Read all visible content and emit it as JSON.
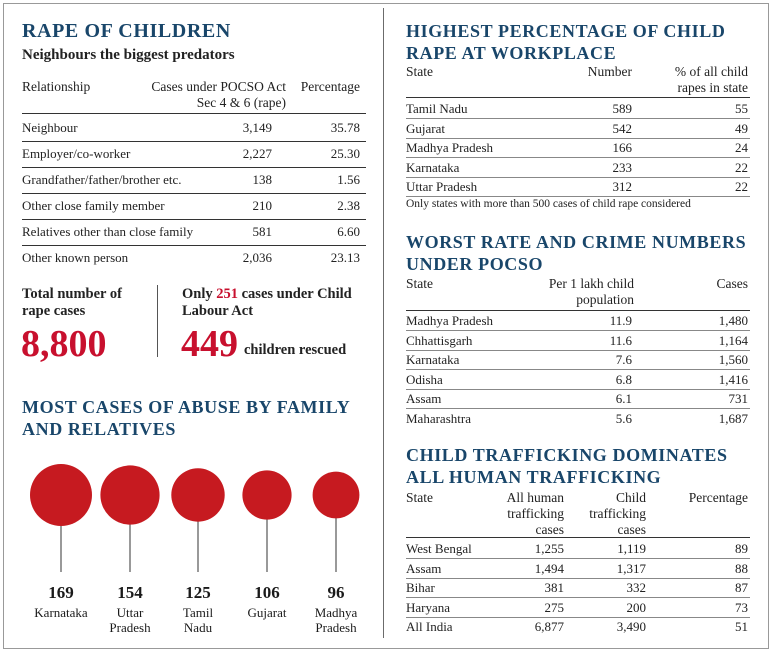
{
  "rape_children": {
    "title": "RAPE OF CHILDREN",
    "subtitle": "Neighbours the biggest predators",
    "headers": [
      "Relationship",
      "Cases under POCSO Act Sec 4 & 6 (rape)",
      "Percentage"
    ],
    "rows": [
      [
        "Neighbour",
        "3,149",
        "35.78"
      ],
      [
        "Employer/co-worker",
        "2,227",
        "25.30"
      ],
      [
        "Grandfather/father/brother etc.",
        "138",
        "1.56"
      ],
      [
        "Other close family member",
        "210",
        "2.38"
      ],
      [
        "Relatives other than close family",
        "581",
        "6.60"
      ],
      [
        "Other known person",
        "2,036",
        "23.13"
      ]
    ],
    "total_label": "Total number of rape cases",
    "total_value": "8,800",
    "child_labour_prefix": "Only ",
    "child_labour_count": "251",
    "child_labour_suffix": " cases under Child Labour Act",
    "rescued_value": "449",
    "rescued_label": "children rescued"
  },
  "family_abuse": {
    "title": "MOST CASES OF ABUSE BY FAMILY AND RELATIVES",
    "bubbles": [
      {
        "value": 169,
        "label": "Karnataka"
      },
      {
        "value": 154,
        "label": "Uttar Pradesh"
      },
      {
        "value": 125,
        "label": "Tamil Nadu"
      },
      {
        "value": 106,
        "label": "Gujarat"
      },
      {
        "value": 96,
        "label": "Madhya Pradesh"
      }
    ]
  },
  "workplace": {
    "title": "HIGHEST PERCENTAGE OF CHILD RAPE AT WORKPLACE",
    "headers": [
      "State",
      "Number",
      "% of all child rapes in state"
    ],
    "rows": [
      [
        "Tamil Nadu",
        "589",
        "55"
      ],
      [
        "Gujarat",
        "542",
        "49"
      ],
      [
        "Madhya Pradesh",
        "166",
        "24"
      ],
      [
        "Karnataka",
        "233",
        "22"
      ],
      [
        "Uttar Pradesh",
        "312",
        "22"
      ]
    ],
    "note": "Only states with more than 500 cases of child rape considered"
  },
  "pocso": {
    "title": "WORST RATE AND CRIME NUMBERS UNDER POCSO",
    "headers": [
      "State",
      "Per 1 lakh child population",
      "Cases"
    ],
    "rows": [
      [
        "Madhya Pradesh",
        "11.9",
        "1,480"
      ],
      [
        "Chhattisgarh",
        "11.6",
        "1,164"
      ],
      [
        "Karnataka",
        "7.6",
        "1,560"
      ],
      [
        "Odisha",
        "6.8",
        "1,416"
      ],
      [
        "Assam",
        "6.1",
        "731"
      ],
      [
        "Maharashtra",
        "5.6",
        "1,687"
      ]
    ]
  },
  "trafficking": {
    "title": "CHILD TRAFFICKING DOMINATES ALL HUMAN TRAFFICKING",
    "headers": [
      "State",
      "All human trafficking cases",
      "Child trafficking cases",
      "Percentage"
    ],
    "rows": [
      [
        "West Bengal",
        "1,255",
        "1,119",
        "89"
      ],
      [
        "Assam",
        "1,494",
        "1,317",
        "88"
      ],
      [
        "Bihar",
        "381",
        "332",
        "87"
      ],
      [
        "Haryana",
        "275",
        "200",
        "73"
      ],
      [
        "All India",
        "6,877",
        "3,490",
        "51"
      ]
    ]
  },
  "colors": {
    "title": "#19466a",
    "accent": "#c8102e",
    "bubble": "#c61a20"
  }
}
